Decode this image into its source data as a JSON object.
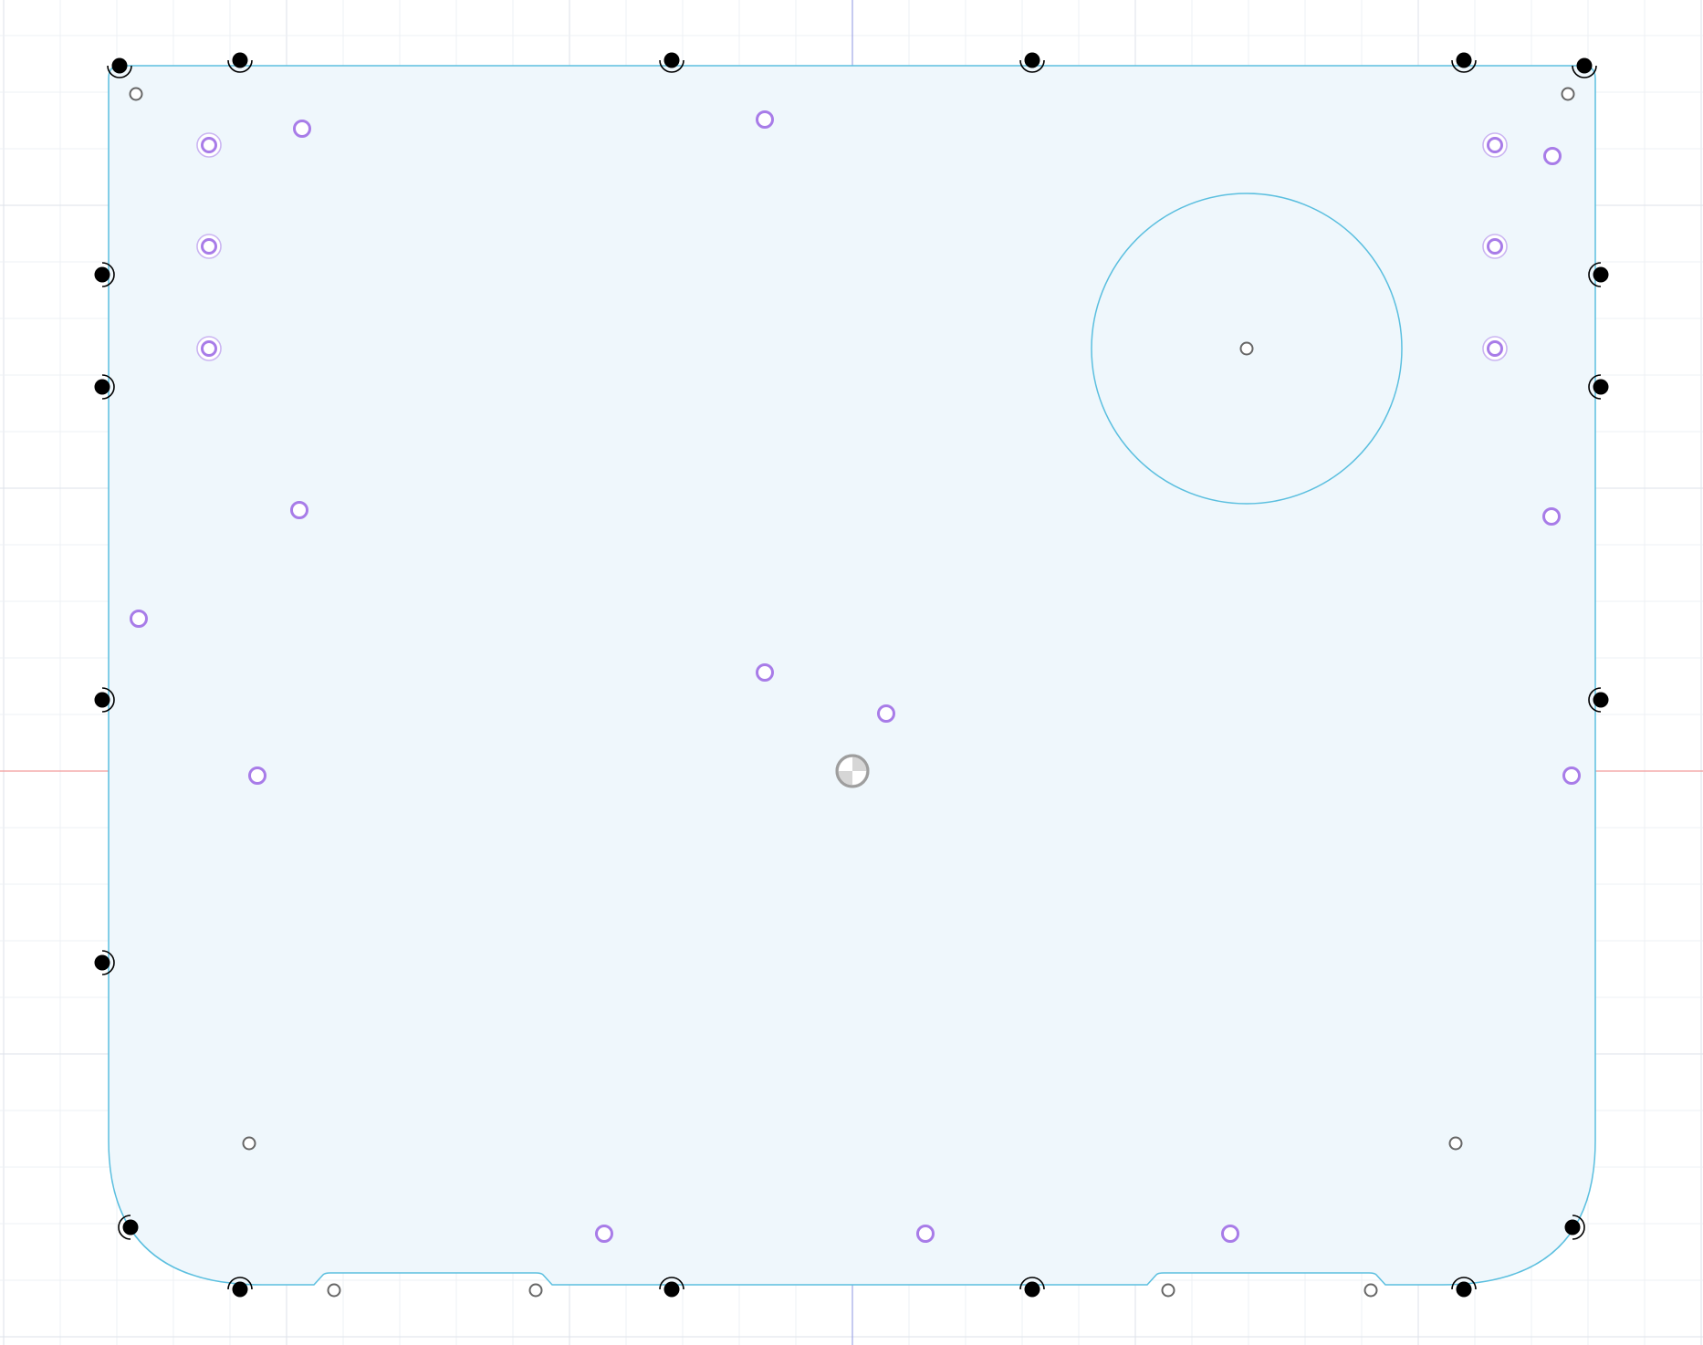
{
  "viewport": {
    "type": "cad-sketch-canvas",
    "colors": {
      "background": "#ffffff",
      "minor_grid": "#eef0f4",
      "major_grid": "#dde2ea",
      "profile_fill": "#eff7fc",
      "profile_stroke": "#5bbfdf",
      "axis_vertical": "#9fa6e6",
      "axis_horizontal": "#f29c9c",
      "fixed_point": "#000000",
      "sketch_point": "#666666",
      "constraint_glyph": "#a87ce8",
      "origin_marker": "#9e9e9e"
    },
    "elements": {
      "profile": "sketch-profile",
      "circle": "sketch-circle",
      "origin": "sketch-origin"
    },
    "icons": {
      "fixed_point": "filled-dot-icon",
      "sketch_point": "hollow-point-icon",
      "coincident": "coincident-ring-icon",
      "concentric": "concentric-ring-icon",
      "origin": "origin-icon"
    }
  }
}
